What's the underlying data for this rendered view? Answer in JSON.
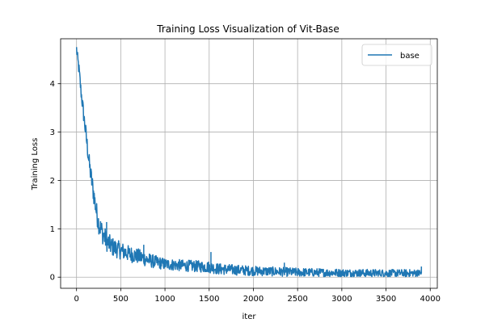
{
  "chart_data": {
    "type": "line",
    "title": "Training Loss Visualization of Vit-Base",
    "xlabel": "iter",
    "ylabel": "Training Loss",
    "xlim": [
      -180,
      4080
    ],
    "ylim": [
      -0.23,
      4.93
    ],
    "xticks": [
      0,
      500,
      1000,
      1500,
      2000,
      2500,
      3000,
      3500,
      4000
    ],
    "yticks": [
      0,
      1,
      2,
      3,
      4
    ],
    "grid": true,
    "legend_position": "top-right",
    "colors": {
      "base": "#1f77b4",
      "grid": "#b0b0b0"
    },
    "series": [
      {
        "name": "base",
        "color": "#1f77b4",
        "x_start": 0,
        "x_end": 3900,
        "keypoints": [
          [
            0,
            4.72
          ],
          [
            10,
            4.55
          ],
          [
            30,
            4.25
          ],
          [
            50,
            3.85
          ],
          [
            75,
            3.45
          ],
          [
            100,
            3.05
          ],
          [
            125,
            2.65
          ],
          [
            150,
            2.25
          ],
          [
            175,
            1.95
          ],
          [
            200,
            1.65
          ],
          [
            225,
            1.35
          ],
          [
            250,
            1.12
          ],
          [
            300,
            0.88
          ],
          [
            350,
            0.72
          ],
          [
            400,
            0.63
          ],
          [
            500,
            0.55
          ],
          [
            600,
            0.48
          ],
          [
            700,
            0.43
          ],
          [
            800,
            0.36
          ],
          [
            900,
            0.31
          ],
          [
            1000,
            0.27
          ],
          [
            1200,
            0.24
          ],
          [
            1400,
            0.22
          ],
          [
            1500,
            0.21
          ],
          [
            1600,
            0.17
          ],
          [
            2000,
            0.13
          ],
          [
            2500,
            0.1
          ],
          [
            3000,
            0.09
          ],
          [
            3500,
            0.08
          ],
          [
            3900,
            0.08
          ]
        ],
        "noise_keypoints": [
          [
            0,
            0.12
          ],
          [
            100,
            0.18
          ],
          [
            200,
            0.22
          ],
          [
            300,
            0.22
          ],
          [
            500,
            0.18
          ],
          [
            800,
            0.15
          ],
          [
            1000,
            0.12
          ],
          [
            1500,
            0.12
          ],
          [
            2000,
            0.1
          ],
          [
            3000,
            0.08
          ],
          [
            3900,
            0.08
          ]
        ],
        "spikes": [
          [
            340,
            1.14
          ],
          [
            760,
            0.67
          ],
          [
            1520,
            0.52
          ],
          [
            2350,
            0.3
          ],
          [
            3900,
            0.22
          ]
        ]
      }
    ]
  }
}
